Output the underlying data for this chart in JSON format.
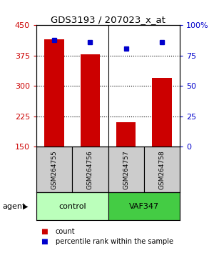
{
  "title": "GDS3193 / 207023_x_at",
  "samples": [
    "GSM264755",
    "GSM264756",
    "GSM264757",
    "GSM264758"
  ],
  "counts": [
    415,
    378,
    210,
    320
  ],
  "percentiles": [
    88,
    86,
    81,
    86
  ],
  "ylim_left": [
    150,
    450
  ],
  "yticks_left": [
    150,
    225,
    300,
    375,
    450
  ],
  "ylim_right": [
    0,
    100
  ],
  "yticks_right": [
    0,
    25,
    50,
    75,
    100
  ],
  "bar_color": "#cc0000",
  "dot_color": "#0000cc",
  "groups": [
    {
      "label": "control",
      "samples": [
        0,
        1
      ],
      "color": "#bbffbb"
    },
    {
      "label": "VAF347",
      "samples": [
        2,
        3
      ],
      "color": "#44cc44"
    }
  ],
  "agent_label": "agent",
  "legend_count_label": "count",
  "legend_pct_label": "percentile rank within the sample",
  "sample_box_color": "#cccccc",
  "grid_dotted_vals": [
    225,
    300,
    375
  ],
  "group_divider_at": 1.5
}
